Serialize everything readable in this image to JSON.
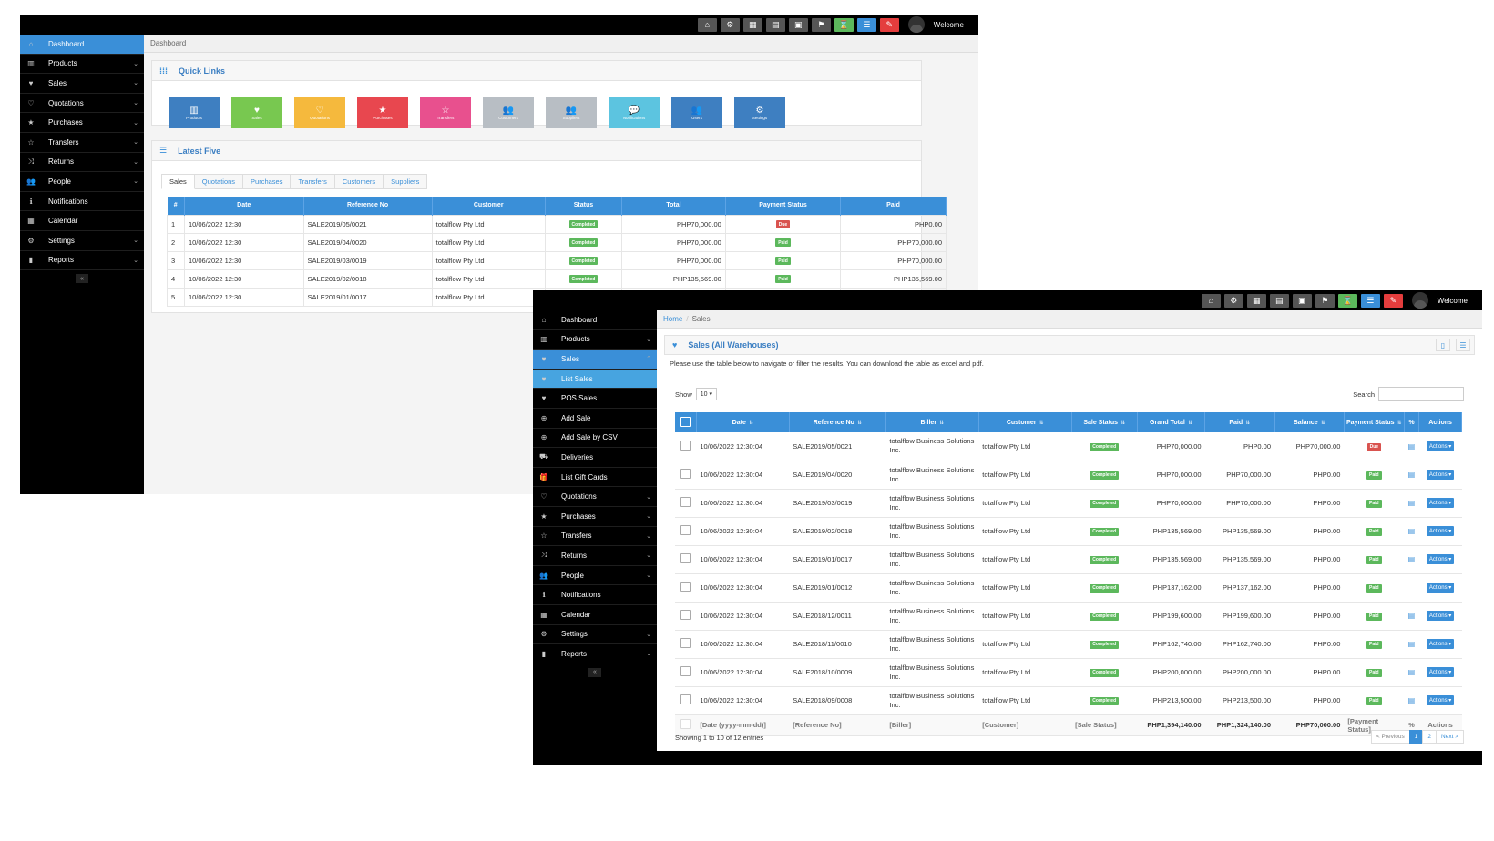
{
  "topbar": {
    "welcome": "Welcome",
    "icons": [
      "home-icon",
      "cogs-icon",
      "calculator-icon",
      "calendar-icon",
      "pos-icon",
      "flag-icon",
      "hourglass-icon",
      "list-icon",
      "eraser-icon"
    ]
  },
  "w1": {
    "sidebar": [
      {
        "label": "Dashboard",
        "icon": "⌂",
        "chev": ""
      },
      {
        "label": "Products",
        "icon": "▥",
        "chev": "⌄"
      },
      {
        "label": "Sales",
        "icon": "♥",
        "chev": "⌄"
      },
      {
        "label": "Quotations",
        "icon": "♡",
        "chev": "⌄"
      },
      {
        "label": "Purchases",
        "icon": "★",
        "chev": "⌄"
      },
      {
        "label": "Transfers",
        "icon": "☆",
        "chev": "⌄"
      },
      {
        "label": "Returns",
        "icon": "⤨",
        "chev": "⌄"
      },
      {
        "label": "People",
        "icon": "👥",
        "chev": "⌄"
      },
      {
        "label": "Notifications",
        "icon": "ℹ",
        "chev": ""
      },
      {
        "label": "Calendar",
        "icon": "▦",
        "chev": ""
      },
      {
        "label": "Settings",
        "icon": "⚙",
        "chev": "⌄"
      },
      {
        "label": "Reports",
        "icon": "▮",
        "chev": "⌄"
      }
    ],
    "breadcrumb": "Dashboard",
    "quick_links_title": "Quick Links",
    "quick_links": [
      {
        "label": "Products",
        "color": "#3e7fc1",
        "icon": "▥"
      },
      {
        "label": "Sales",
        "color": "#78c850",
        "icon": "♥"
      },
      {
        "label": "Quotations",
        "color": "#f5b93d",
        "icon": "♡"
      },
      {
        "label": "Purchases",
        "color": "#e8474f",
        "icon": "★"
      },
      {
        "label": "Transfers",
        "color": "#e8508e",
        "icon": "☆"
      },
      {
        "label": "Customers",
        "color": "#b8bec4",
        "icon": "👥"
      },
      {
        "label": "Suppliers",
        "color": "#b8bec4",
        "icon": "👥"
      },
      {
        "label": "Notifications",
        "color": "#5cc4e0",
        "icon": "💬"
      },
      {
        "label": "Users",
        "color": "#3e7fc1",
        "icon": "👥"
      },
      {
        "label": "Settings",
        "color": "#3e7fc1",
        "icon": "⚙"
      }
    ],
    "latest_title": "Latest Five",
    "tabs": [
      "Sales",
      "Quotations",
      "Purchases",
      "Transfers",
      "Customers",
      "Suppliers"
    ],
    "table_headers": [
      "#",
      "Date",
      "Reference No",
      "Customer",
      "Status",
      "Total",
      "Payment Status",
      "Paid"
    ],
    "rows": [
      [
        "1",
        "10/06/2022 12:30",
        "SALE2019/05/0021",
        "totalflow Pty Ltd",
        "Completed",
        "PHP70,000.00",
        "Due",
        "PHP0.00"
      ],
      [
        "2",
        "10/06/2022 12:30",
        "SALE2019/04/0020",
        "totalflow Pty Ltd",
        "Completed",
        "PHP70,000.00",
        "Paid",
        "PHP70,000.00"
      ],
      [
        "3",
        "10/06/2022 12:30",
        "SALE2019/03/0019",
        "totalflow Pty Ltd",
        "Completed",
        "PHP70,000.00",
        "Paid",
        "PHP70,000.00"
      ],
      [
        "4",
        "10/06/2022 12:30",
        "SALE2019/02/0018",
        "totalflow Pty Ltd",
        "Completed",
        "PHP135,569.00",
        "Paid",
        "PHP135,569.00"
      ],
      [
        "5",
        "10/06/2022 12:30",
        "SALE2019/01/0017",
        "totalflow Pty Ltd",
        "",
        "",
        "",
        ""
      ]
    ]
  },
  "w2": {
    "sidebar": [
      {
        "label": "Dashboard",
        "icon": "⌂",
        "chev": "",
        "cls": ""
      },
      {
        "label": "Products",
        "icon": "▥",
        "chev": "⌄",
        "cls": ""
      },
      {
        "label": "Sales",
        "icon": "♥",
        "chev": "⌃",
        "cls": "active"
      },
      {
        "label": "List Sales",
        "icon": "♥",
        "chev": "",
        "cls": "sub cur"
      },
      {
        "label": "POS Sales",
        "icon": "♥",
        "chev": "",
        "cls": "sub"
      },
      {
        "label": "Add Sale",
        "icon": "⊕",
        "chev": "",
        "cls": "sub"
      },
      {
        "label": "Add Sale by CSV",
        "icon": "⊕",
        "chev": "",
        "cls": "sub"
      },
      {
        "label": "Deliveries",
        "icon": "⛟",
        "chev": "",
        "cls": "sub"
      },
      {
        "label": "List Gift Cards",
        "icon": "🎁",
        "chev": "",
        "cls": "sub"
      },
      {
        "label": "Quotations",
        "icon": "♡",
        "chev": "⌄",
        "cls": ""
      },
      {
        "label": "Purchases",
        "icon": "★",
        "chev": "⌄",
        "cls": ""
      },
      {
        "label": "Transfers",
        "icon": "☆",
        "chev": "⌄",
        "cls": ""
      },
      {
        "label": "Returns",
        "icon": "⤨",
        "chev": "⌄",
        "cls": ""
      },
      {
        "label": "People",
        "icon": "👥",
        "chev": "⌄",
        "cls": ""
      },
      {
        "label": "Notifications",
        "icon": "ℹ",
        "chev": "",
        "cls": ""
      },
      {
        "label": "Calendar",
        "icon": "▦",
        "chev": "",
        "cls": ""
      },
      {
        "label": "Settings",
        "icon": "⚙",
        "chev": "⌄",
        "cls": ""
      },
      {
        "label": "Reports",
        "icon": "▮",
        "chev": "⌄",
        "cls": ""
      }
    ],
    "breadcrumb_home": "Home",
    "breadcrumb_current": "Sales",
    "title": "Sales (All Warehouses)",
    "intro": "Please use the table below to navigate or filter the results. You can download the table as excel and pdf.",
    "show_label": "Show",
    "show_value": "10",
    "search_label": "Search",
    "headers": [
      "",
      "Date",
      "Reference No",
      "Biller",
      "Customer",
      "Sale Status",
      "Grand Total",
      "Paid",
      "Balance",
      "Payment Status",
      "%",
      "Actions"
    ],
    "rows": [
      [
        "10/06/2022 12:30:04",
        "SALE2019/05/0021",
        "totalflow Business Solutions Inc.",
        "totalflow Pty Ltd",
        "Completed",
        "PHP70,000.00",
        "PHP0.00",
        "PHP70,000.00",
        "Due",
        "doc"
      ],
      [
        "10/06/2022 12:30:04",
        "SALE2019/04/0020",
        "totalflow Business Solutions Inc.",
        "totalflow Pty Ltd",
        "Completed",
        "PHP70,000.00",
        "PHP70,000.00",
        "PHP0.00",
        "Paid",
        "doc"
      ],
      [
        "10/06/2022 12:30:04",
        "SALE2019/03/0019",
        "totalflow Business Solutions Inc.",
        "totalflow Pty Ltd",
        "Completed",
        "PHP70,000.00",
        "PHP70,000.00",
        "PHP0.00",
        "Paid",
        "doc"
      ],
      [
        "10/06/2022 12:30:04",
        "SALE2019/02/0018",
        "totalflow Business Solutions Inc.",
        "totalflow Pty Ltd",
        "Completed",
        "PHP135,569.00",
        "PHP135,569.00",
        "PHP0.00",
        "Paid",
        "doc"
      ],
      [
        "10/06/2022 12:30:04",
        "SALE2019/01/0017",
        "totalflow Business Solutions Inc.",
        "totalflow Pty Ltd",
        "Completed",
        "PHP135,569.00",
        "PHP135,569.00",
        "PHP0.00",
        "Paid",
        "doc"
      ],
      [
        "10/06/2022 12:30:04",
        "SALE2019/01/0012",
        "totalflow Business Solutions Inc.",
        "totalflow Pty Ltd",
        "Completed",
        "PHP137,162.00",
        "PHP137,162.00",
        "PHP0.00",
        "Paid",
        ""
      ],
      [
        "10/06/2022 12:30:04",
        "SALE2018/12/0011",
        "totalflow Business Solutions Inc.",
        "totalflow Pty Ltd",
        "Completed",
        "PHP199,600.00",
        "PHP199,600.00",
        "PHP0.00",
        "Paid",
        "doc"
      ],
      [
        "10/06/2022 12:30:04",
        "SALE2018/11/0010",
        "totalflow Business Solutions Inc.",
        "totalflow Pty Ltd",
        "Completed",
        "PHP162,740.00",
        "PHP162,740.00",
        "PHP0.00",
        "Paid",
        "doc"
      ],
      [
        "10/06/2022 12:30:04",
        "SALE2018/10/0009",
        "totalflow Business Solutions Inc.",
        "totalflow Pty Ltd",
        "Completed",
        "PHP200,000.00",
        "PHP200,000.00",
        "PHP0.00",
        "Paid",
        "doc"
      ],
      [
        "10/06/2022 12:30:04",
        "SALE2018/09/0008",
        "totalflow Business Solutions Inc.",
        "totalflow Pty Ltd",
        "Completed",
        "PHP213,500.00",
        "PHP213,500.00",
        "PHP0.00",
        "Paid",
        "doc"
      ]
    ],
    "actions_label": "Actions ▾",
    "footer": [
      "[Date (yyyy-mm-dd)]",
      "[Reference No]",
      "[Biller]",
      "[Customer]",
      "[Sale Status]",
      "PHP1,394,140.00",
      "PHP1,324,140.00",
      "PHP70,000.00",
      "[Payment Status]",
      "%",
      "Actions"
    ],
    "showing": "Showing 1 to 10 of 12 entries",
    "pagination": [
      "< Previous",
      "1",
      "2",
      "Next >"
    ]
  }
}
